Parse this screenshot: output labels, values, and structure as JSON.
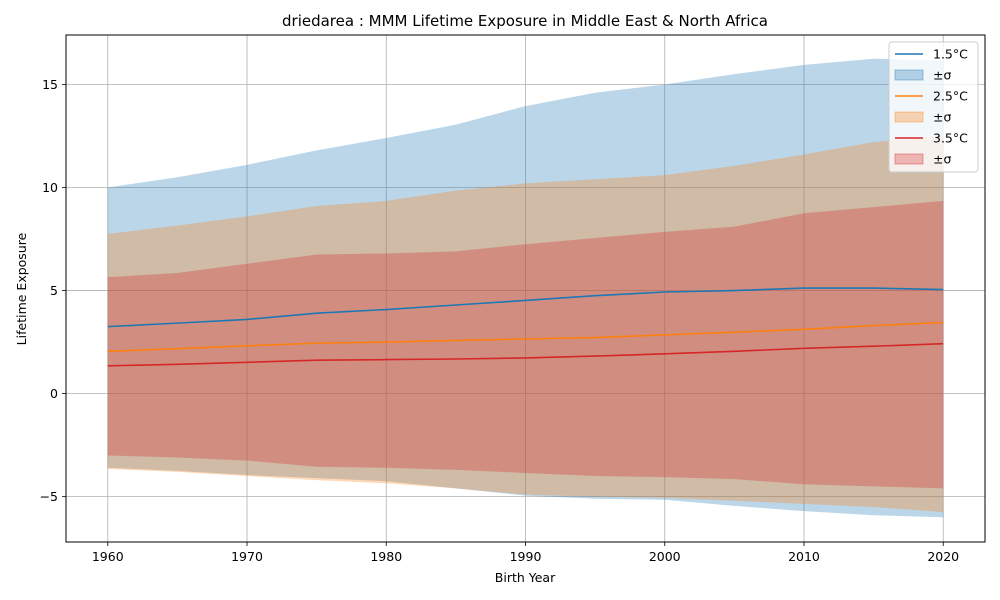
{
  "chart_data": {
    "type": "area",
    "title": "driedarea : MMM Lifetime Exposure in Middle East & North Africa",
    "xlabel": "Birth Year",
    "ylabel": "Lifetime Exposure",
    "xlim": [
      1957,
      2023
    ],
    "ylim": [
      -7.2,
      17.4
    ],
    "xticks": [
      1960,
      1970,
      1980,
      1990,
      2000,
      2010,
      2020
    ],
    "yticks": [
      -5,
      0,
      5,
      10,
      15
    ],
    "grid": true,
    "legend_position": "top-right",
    "x": [
      1960,
      1965,
      1970,
      1975,
      1980,
      1985,
      1990,
      1995,
      2000,
      2005,
      2010,
      2015,
      2020
    ],
    "series": [
      {
        "name": "1.5°C",
        "band_label": "±σ",
        "color": "#1f77b4",
        "band_color": "#1f77b4",
        "mean": [
          3.25,
          3.42,
          3.6,
          3.9,
          4.08,
          4.3,
          4.52,
          4.75,
          4.93,
          5.0,
          5.12,
          5.12,
          5.05
        ],
        "upper": [
          10.0,
          10.5,
          11.1,
          11.8,
          12.4,
          13.05,
          13.95,
          14.6,
          15.0,
          15.5,
          15.95,
          16.25,
          16.15
        ],
        "lower": [
          -3.6,
          -3.75,
          -3.95,
          -4.1,
          -4.25,
          -4.6,
          -4.95,
          -5.1,
          -5.15,
          -5.45,
          -5.7,
          -5.9,
          -6.0
        ]
      },
      {
        "name": "2.5°C",
        "band_label": "±σ",
        "color": "#ff7f0e",
        "band_color": "#ff7f0e",
        "mean": [
          2.05,
          2.18,
          2.32,
          2.45,
          2.5,
          2.58,
          2.65,
          2.72,
          2.85,
          2.98,
          3.12,
          3.3,
          3.45
        ],
        "upper": [
          7.75,
          8.15,
          8.6,
          9.1,
          9.35,
          9.85,
          10.2,
          10.4,
          10.6,
          11.05,
          11.6,
          12.2,
          12.5
        ],
        "lower": [
          -3.65,
          -3.8,
          -4.0,
          -4.2,
          -4.35,
          -4.6,
          -4.9,
          -5.0,
          -5.05,
          -5.2,
          -5.35,
          -5.5,
          -5.75
        ]
      },
      {
        "name": "3.5°C",
        "band_label": "±σ",
        "color": "#d62728",
        "band_color": "#d62728",
        "mean": [
          1.35,
          1.42,
          1.52,
          1.62,
          1.65,
          1.68,
          1.73,
          1.82,
          1.93,
          2.05,
          2.2,
          2.3,
          2.42
        ],
        "upper": [
          5.65,
          5.85,
          6.3,
          6.75,
          6.8,
          6.9,
          7.25,
          7.55,
          7.85,
          8.1,
          8.75,
          9.05,
          9.35
        ],
        "lower": [
          -3.0,
          -3.1,
          -3.25,
          -3.55,
          -3.6,
          -3.7,
          -3.85,
          -4.0,
          -4.05,
          -4.15,
          -4.4,
          -4.5,
          -4.6
        ]
      }
    ]
  }
}
